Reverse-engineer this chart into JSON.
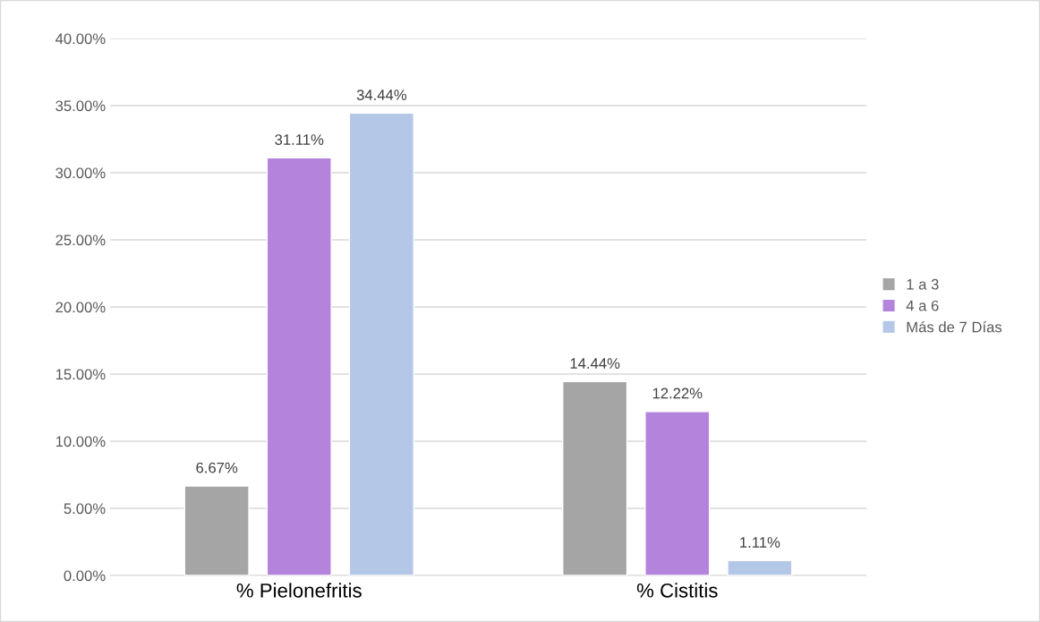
{
  "chart_data": {
    "type": "bar",
    "categories": [
      "% Pielonefritis",
      "% Cistitis"
    ],
    "series": [
      {
        "name": "1 a 3",
        "color": "#a5a5a5",
        "values": [
          6.67,
          14.44
        ],
        "value_labels": [
          "6.67%",
          "14.44%"
        ]
      },
      {
        "name": "4 a 6",
        "color": "#b484dc",
        "values": [
          31.11,
          12.22
        ],
        "value_labels": [
          "31.11%",
          "12.22%"
        ]
      },
      {
        "name": "Más de 7 Días",
        "color": "#b4c7e7",
        "values": [
          34.44,
          1.11
        ],
        "value_labels": [
          "34.44%",
          "1.11%"
        ]
      }
    ],
    "ylim": [
      0,
      40
    ],
    "yticks": [
      {
        "value": 0,
        "label": "0.00%"
      },
      {
        "value": 5,
        "label": "5.00%"
      },
      {
        "value": 10,
        "label": "10.00%"
      },
      {
        "value": 15,
        "label": "15.00%"
      },
      {
        "value": 20,
        "label": "20.00%"
      },
      {
        "value": 25,
        "label": "25.00%"
      },
      {
        "value": 30,
        "label": "30.00%"
      },
      {
        "value": 35,
        "label": "35.00%"
      },
      {
        "value": 40,
        "label": "40.00%"
      }
    ],
    "grid": "y",
    "legend": "right"
  }
}
